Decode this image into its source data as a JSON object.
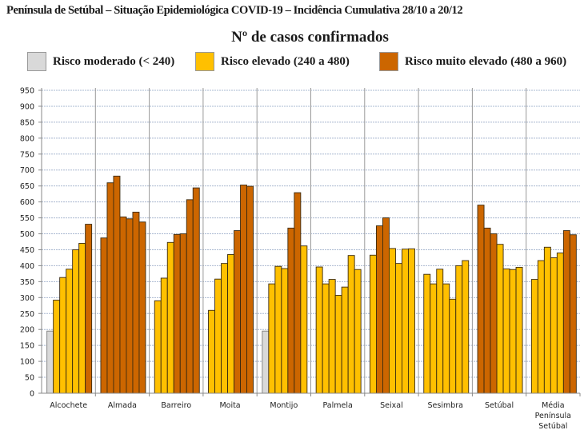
{
  "colors": {
    "moderado": "#d9d9d9",
    "elevado": "#ffc000",
    "muito_elevado": "#cc6600",
    "grid": "#a9b8d0",
    "separator": "#999999"
  },
  "chart_data": {
    "type": "bar",
    "title": "Península de Setúbal – Situação Epidemiológica COVID-19 – Incidência Cumulativa  28/10 a 20/12",
    "subtitle": "Nº de casos confirmados",
    "legend": [
      {
        "key": "moderado",
        "label": "Risco moderado (< 240)"
      },
      {
        "key": "elevado",
        "label": "Risco elevado (240 a 480)"
      },
      {
        "key": "muito_elevado",
        "label": "Risco muito elevado (480 a 960)"
      }
    ],
    "legend_position": "top",
    "ylim": [
      0,
      950
    ],
    "ytick_step": 50,
    "yticks": [
      "0",
      "50",
      "100",
      "150",
      "200",
      "250",
      "300",
      "350",
      "400",
      "450",
      "500",
      "550",
      "600",
      "650",
      "700",
      "750",
      "800",
      "850",
      "900",
      "950"
    ],
    "grid": true,
    "categories": [
      "Alcochete",
      "Almada",
      "Barreiro",
      "Moita",
      "Montijo",
      "Palmela",
      "Seixal",
      "Sesimbra",
      "Setúbal",
      "Média Península Setúbal"
    ],
    "category_lines": [
      [
        "Alcochete"
      ],
      [
        "Almada"
      ],
      [
        "Barreiro"
      ],
      [
        "Moita"
      ],
      [
        "Montijo"
      ],
      [
        "Palmela"
      ],
      [
        "Seixal"
      ],
      [
        "Sesimbra"
      ],
      [
        "Setúbal"
      ],
      [
        "Média",
        "Península",
        "Setúbal"
      ]
    ],
    "bars_per_category": 7,
    "values": [
      [
        195,
        292,
        363,
        389,
        450,
        470,
        530
      ],
      [
        487,
        660,
        681,
        553,
        547,
        568,
        537
      ],
      [
        290,
        361,
        473,
        498,
        500,
        607,
        644
      ],
      [
        260,
        358,
        407,
        435,
        510,
        653,
        649
      ],
      [
        195,
        343,
        398,
        391,
        518,
        629,
        462
      ],
      [
        396,
        343,
        357,
        307,
        333,
        432,
        388
      ],
      [
        433,
        525,
        550,
        454,
        407,
        452,
        453
      ],
      [
        373,
        343,
        389,
        343,
        295,
        400,
        416
      ],
      [
        590,
        518,
        500,
        467,
        390,
        388,
        395
      ],
      [
        357,
        416,
        458,
        425,
        440,
        510,
        497
      ]
    ],
    "risk_thresholds": {
      "moderado_below": 240,
      "muito_elevado_from": 480
    }
  }
}
